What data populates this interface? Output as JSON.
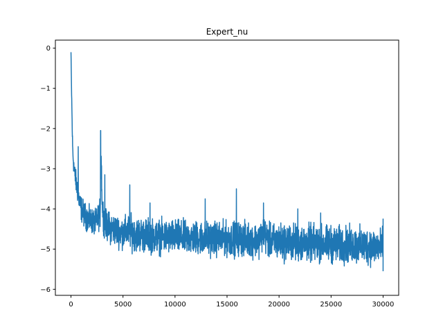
{
  "chart_data": {
    "type": "line",
    "title": "Expert_nu",
    "xlabel": "",
    "ylabel": "",
    "xlim": [
      -1500,
      31500
    ],
    "ylim": [
      -6.15,
      0.2
    ],
    "x_ticks": [
      0,
      5000,
      10000,
      15000,
      20000,
      25000,
      30000
    ],
    "y_ticks": [
      0,
      -1,
      -2,
      -3,
      -4,
      -5,
      -6
    ],
    "grid": false,
    "legend": "none",
    "series": [
      {
        "color": "#1f77b4",
        "x": [
          0,
          50,
          100,
          150,
          200,
          300,
          400,
          500,
          600,
          800,
          1000,
          1300,
          1600,
          2000,
          2400,
          2800,
          2900,
          3000,
          3200,
          3600,
          4000,
          4500,
          5000,
          5600,
          6000,
          7000,
          8000,
          9000,
          10000,
          11000,
          12000,
          13000,
          14000,
          15000,
          16000,
          17000,
          18000,
          18500,
          19000,
          20000,
          21000,
          22000,
          23000,
          24000,
          25000,
          26000,
          27000,
          28000,
          29000,
          30000
        ],
        "y": [
          -0.1,
          -1.0,
          -1.7,
          -2.4,
          -2.7,
          -3.0,
          -3.2,
          -3.35,
          -3.5,
          -3.8,
          -4.0,
          -4.15,
          -4.25,
          -4.3,
          -4.35,
          -4.1,
          -2.6,
          -3.9,
          -4.35,
          -4.45,
          -4.5,
          -4.55,
          -4.6,
          -4.55,
          -4.62,
          -4.65,
          -4.68,
          -4.7,
          -4.7,
          -4.72,
          -4.72,
          -4.73,
          -4.74,
          -4.75,
          -4.74,
          -4.76,
          -4.78,
          -4.6,
          -4.8,
          -4.82,
          -4.83,
          -4.85,
          -4.85,
          -4.87,
          -4.88,
          -4.9,
          -4.9,
          -4.92,
          -4.93,
          -4.95
        ],
        "band_width": [
          0.05,
          0.2,
          0.25,
          0.3,
          0.3,
          0.35,
          0.35,
          0.4,
          0.4,
          0.4,
          0.45,
          0.45,
          0.45,
          0.45,
          0.45,
          0.5,
          0.5,
          0.5,
          0.5,
          0.55,
          0.55,
          0.55,
          0.55,
          0.6,
          0.6,
          0.6,
          0.6,
          0.6,
          0.6,
          0.6,
          0.6,
          0.6,
          0.6,
          0.6,
          0.6,
          0.6,
          0.6,
          0.6,
          0.6,
          0.65,
          0.65,
          0.65,
          0.65,
          0.65,
          0.65,
          0.65,
          0.65,
          0.65,
          0.65,
          0.65
        ],
        "spikes": [
          [
            700,
            -2.45
          ],
          [
            2850,
            -2.05
          ],
          [
            3250,
            -3.15
          ],
          [
            5650,
            -3.4
          ],
          [
            7600,
            -3.85
          ],
          [
            12900,
            -3.75
          ],
          [
            15900,
            -3.5
          ],
          [
            18500,
            -3.85
          ],
          [
            21800,
            -4.0
          ],
          [
            24000,
            -4.1
          ]
        ]
      }
    ]
  }
}
